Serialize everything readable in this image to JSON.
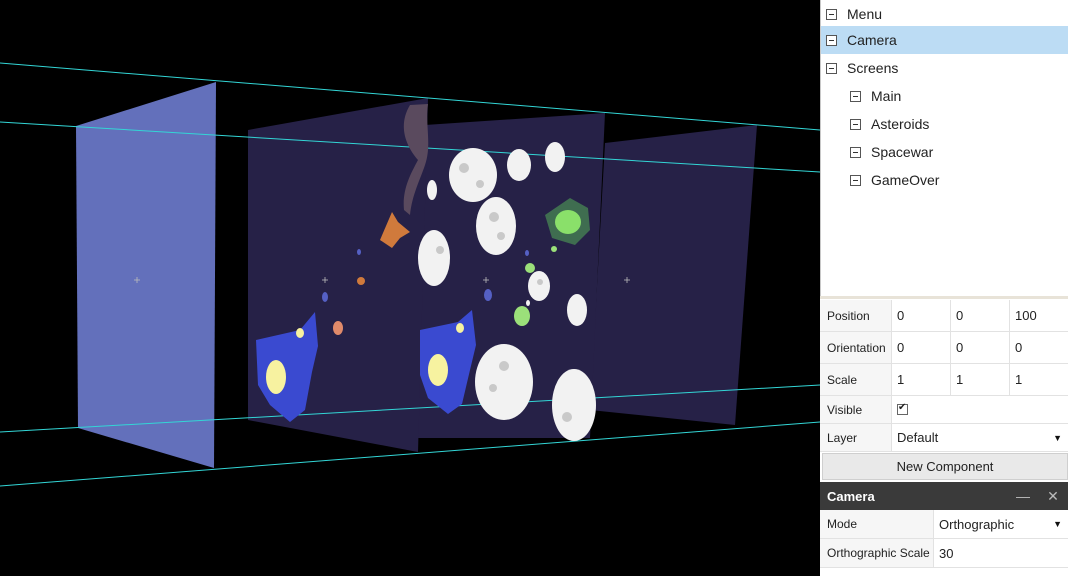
{
  "tree": {
    "items": [
      {
        "label": "Menu",
        "selected": false
      },
      {
        "label": "Camera",
        "selected": true
      },
      {
        "label": "Screens",
        "selected": false
      },
      {
        "label": "Main",
        "selected": false
      },
      {
        "label": "Asteroids",
        "selected": false
      },
      {
        "label": "Spacewar",
        "selected": false
      },
      {
        "label": "GameOver",
        "selected": false
      }
    ]
  },
  "properties": {
    "position": {
      "label": "Position",
      "x": "0",
      "y": "0",
      "z": "100"
    },
    "orientation": {
      "label": "Orientation",
      "x": "0",
      "y": "0",
      "z": "0"
    },
    "scale": {
      "label": "Scale",
      "x": "1",
      "y": "1",
      "z": "1"
    },
    "visible": {
      "label": "Visible",
      "checked": true
    },
    "layer": {
      "label": "Layer",
      "value": "Default"
    }
  },
  "new_component_label": "New Component",
  "camera_component": {
    "title": "Camera",
    "mode_label": "Mode",
    "mode_value": "Orthographic",
    "ortho_label": "Orthographic Scale",
    "ortho_value": "30"
  },
  "colors": {
    "selection": "#bcdcf4",
    "frustum_line": "#33d6d6",
    "camera_plane": "#6370bb",
    "screen_plane": "#262147"
  }
}
